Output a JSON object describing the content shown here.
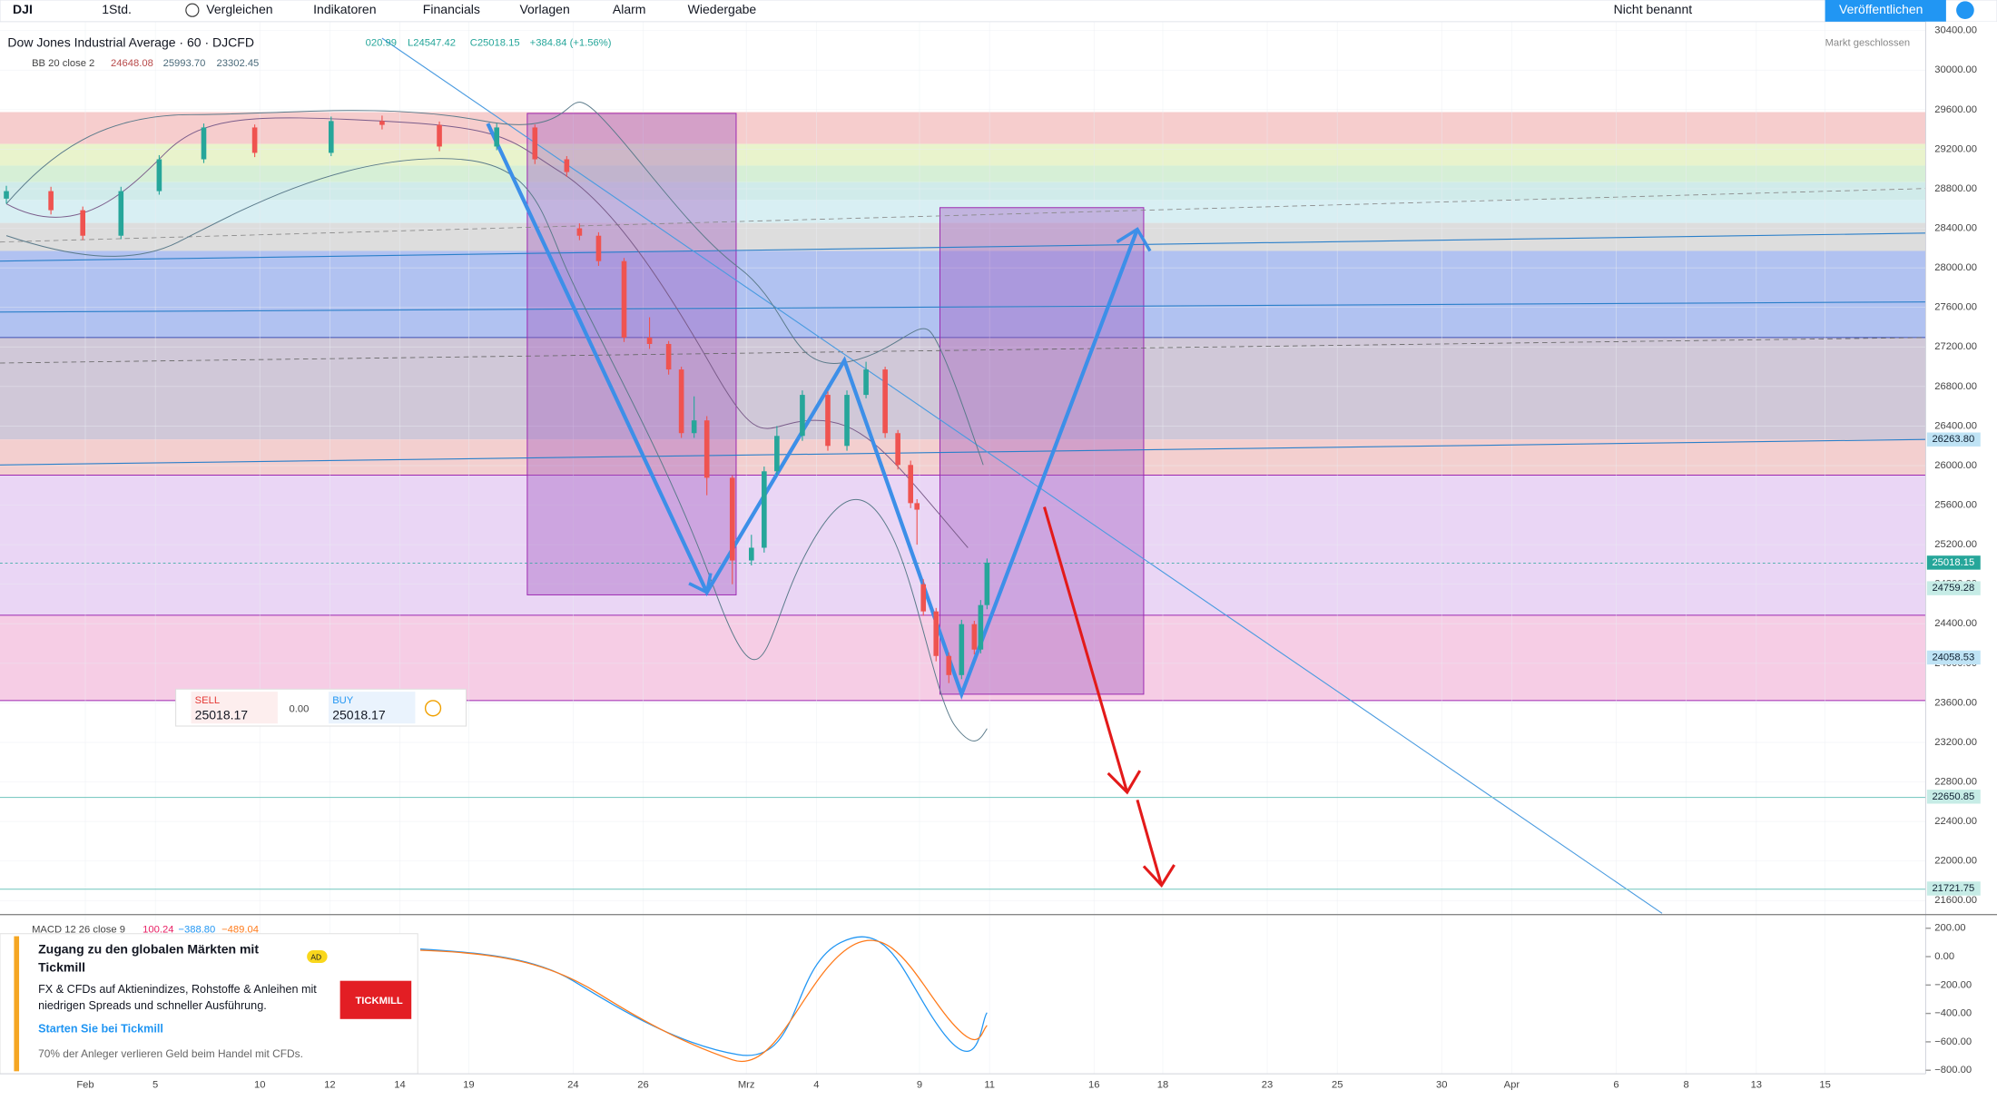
{
  "toolbar": {
    "symbol": "DJI",
    "interval": "1Std.",
    "items": [
      "Vergleichen",
      "Indikatoren",
      "Financials",
      "Vorlagen",
      "Alarm",
      "Wiedergabe"
    ],
    "layout_name": "Nicht benannt",
    "publish": "Veröffentlichen"
  },
  "legend": {
    "title": "Dow Jones Industrial Average · 60 · DJCFD",
    "values": [
      "020.99",
      "L24547.42",
      "C25018.15",
      "+384.84 (+1.56%)"
    ],
    "indicator": "BB 20 close 2",
    "indicator_values": [
      "24648.08",
      "25993.70",
      "23302.45"
    ],
    "status": "Markt geschlossen"
  },
  "price_chart": {
    "ylim": [
      21600,
      30400
    ],
    "ticks": [
      {
        "value": 21600,
        "label": "21600.00"
      },
      {
        "value": 22000,
        "label": "22000.00"
      },
      {
        "value": 22400,
        "label": "22400.00"
      },
      {
        "value": 22800,
        "label": "22800.00"
      },
      {
        "value": 23200,
        "label": "23200.00"
      },
      {
        "value": 23600,
        "label": "23600.00"
      },
      {
        "value": 24000,
        "label": "24000.00"
      },
      {
        "value": 24400,
        "label": "24400.00"
      },
      {
        "value": 24800,
        "label": "24800.00"
      },
      {
        "value": 25200,
        "label": "25200.00"
      },
      {
        "value": 25600,
        "label": "25600.00"
      },
      {
        "value": 26000,
        "label": "26000.00"
      },
      {
        "value": 26400,
        "label": "26400.00"
      },
      {
        "value": 26800,
        "label": "26800.00"
      },
      {
        "value": 27200,
        "label": "27200.00"
      },
      {
        "value": 27600,
        "label": "27600.00"
      },
      {
        "value": 28000,
        "label": "28000.00"
      },
      {
        "value": 28400,
        "label": "28400.00"
      },
      {
        "value": 28800,
        "label": "28800.00"
      },
      {
        "value": 29200,
        "label": "29200.00"
      },
      {
        "value": 29600,
        "label": "29600.00"
      },
      {
        "value": 30000,
        "label": "30000.00"
      },
      {
        "value": 30400,
        "label": "30400.00"
      }
    ],
    "price_labels": [
      {
        "value": 26263.8,
        "label": "26263.80",
        "color": "#bfe3f5"
      },
      {
        "value": 25018.15,
        "label": "25018.15",
        "color": "#26a69a"
      },
      {
        "value": 24759.28,
        "label": "24759.28",
        "color": "#c6ece6"
      },
      {
        "value": 24058.53,
        "label": "24058.53",
        "color": "#bfe3f5"
      },
      {
        "value": 22650.85,
        "label": "22650.85",
        "color": "#c6ece6"
      },
      {
        "value": 21721.75,
        "label": "21721.75",
        "color": "#c6ece6"
      }
    ],
    "x_labels": [
      "Feb",
      "5",
      "10",
      "12",
      "14",
      "19",
      "24",
      "26",
      "Mrz",
      "4",
      "9",
      "11",
      "16",
      "18",
      "23",
      "25",
      "30",
      "Apr",
      "6",
      "8",
      "13",
      "15"
    ],
    "candles": [
      [
        28700,
        28830,
        28650,
        28776
      ],
      [
        28776,
        28820,
        28540,
        28583
      ],
      [
        28583,
        28620,
        28280,
        28325
      ],
      [
        28325,
        28820,
        28290,
        28776
      ],
      [
        28776,
        29140,
        28740,
        29098
      ],
      [
        29098,
        29460,
        29060,
        29420
      ],
      [
        29420,
        29450,
        29120,
        29163
      ],
      [
        29163,
        29530,
        29130,
        29485
      ],
      [
        29485,
        29540,
        29400,
        29446
      ],
      [
        29446,
        29480,
        29180,
        29227
      ],
      [
        29227,
        29460,
        29190,
        29420
      ],
      [
        29420,
        29450,
        29050,
        29098
      ],
      [
        29098,
        29130,
        28920,
        28969
      ],
      [
        28400,
        28450,
        28280,
        28325
      ],
      [
        28325,
        28360,
        28020,
        28068
      ],
      [
        28068,
        28100,
        27250,
        27295
      ],
      [
        27295,
        27500,
        27180,
        27230
      ],
      [
        27230,
        27260,
        26920,
        26972
      ],
      [
        26972,
        27000,
        26280,
        26328
      ],
      [
        26328,
        26700,
        26280,
        26457
      ],
      [
        26457,
        26500,
        25700,
        25877
      ],
      [
        25877,
        25900,
        24800,
        25040
      ],
      [
        25040,
        25300,
        24990,
        25169
      ],
      [
        25169,
        25990,
        25120,
        25942
      ],
      [
        25942,
        26400,
        25900,
        26300
      ],
      [
        26300,
        26760,
        26250,
        26715
      ],
      [
        26715,
        26750,
        26150,
        26199
      ],
      [
        26199,
        26760,
        26150,
        26715
      ],
      [
        26715,
        27050,
        26680,
        26972
      ],
      [
        26972,
        27000,
        26280,
        26328
      ],
      [
        26328,
        26360,
        25960,
        26006
      ],
      [
        26006,
        26050,
        25570,
        25620
      ],
      [
        25620,
        25660,
        25200,
        25554
      ],
      [
        24800,
        24850,
        24480,
        24525
      ],
      [
        24525,
        24560,
        24020,
        24074
      ],
      [
        24074,
        24110,
        23800,
        23881
      ],
      [
        23881,
        24440,
        23840,
        24396
      ],
      [
        24396,
        24430,
        24090,
        24139
      ],
      [
        24139,
        24640,
        24100,
        24589
      ],
      [
        24589,
        25060,
        24547,
        25018
      ]
    ]
  },
  "trade_widget": {
    "sell_label": "SELL",
    "sell_price": "25018.17",
    "spread": "0.00",
    "buy_label": "BUY",
    "buy_price": "25018.17"
  },
  "macd": {
    "title": "MACD 12 26 close 9",
    "values": [
      "100.24",
      "−388.80",
      "−489.04"
    ],
    "ticks": [
      {
        "value": 200,
        "label": "200.00"
      },
      {
        "value": 0,
        "label": "0.00"
      },
      {
        "value": -200,
        "label": "−200.00"
      },
      {
        "value": -400,
        "label": "−400.00"
      },
      {
        "value": -600,
        "label": "−600.00"
      },
      {
        "value": -800,
        "label": "−800.00"
      }
    ]
  },
  "ad": {
    "badge": "AD",
    "title_lines": [
      "Zugang zu den globalen Märkten mit",
      "Tickmill"
    ],
    "text_lines": [
      "FX & CFDs auf Aktienindizes, Rohstoffe & Anleihen mit",
      "niedrigen Spreads und schneller Ausführung."
    ],
    "link": "Starten Sie bei Tickmill",
    "disclaimer": "70% der Anleger verlieren Geld beim Handel mit CFDs.",
    "logo": "TICKMILL"
  }
}
